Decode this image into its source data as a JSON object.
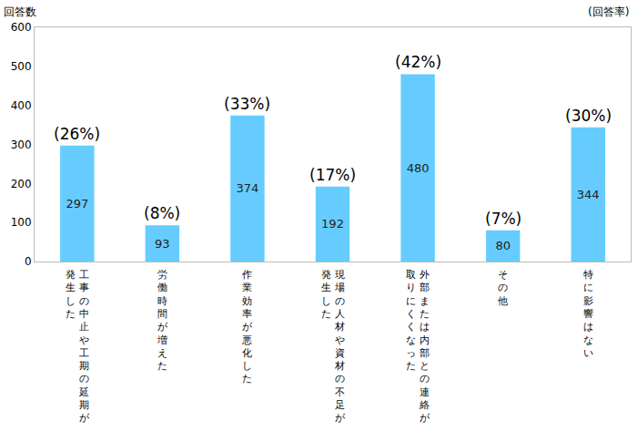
{
  "chart_data": {
    "type": "bar",
    "ylabel": "回答数",
    "secondary_label": "(回答率)",
    "categories": [
      "工事の中止や工期の延期が発生した",
      "労働時間が増えた",
      "作業効率が悪化した",
      "現場の人材や資材の不足が発生した",
      "外部または内部との連絡が取りにくくなった",
      "その他",
      "特に影響はない"
    ],
    "values": [
      297,
      93,
      374,
      192,
      480,
      80,
      344
    ],
    "rate_labels": [
      "(26%)",
      "(8%)",
      "(33%)",
      "(17%)",
      "(42%)",
      "(7%)",
      "(30%)"
    ],
    "color": "#66ccff",
    "ylim": [
      0,
      600
    ],
    "yticks": [
      0,
      100,
      200,
      300,
      400,
      500,
      600
    ],
    "grid": false,
    "data_labels": true
  }
}
